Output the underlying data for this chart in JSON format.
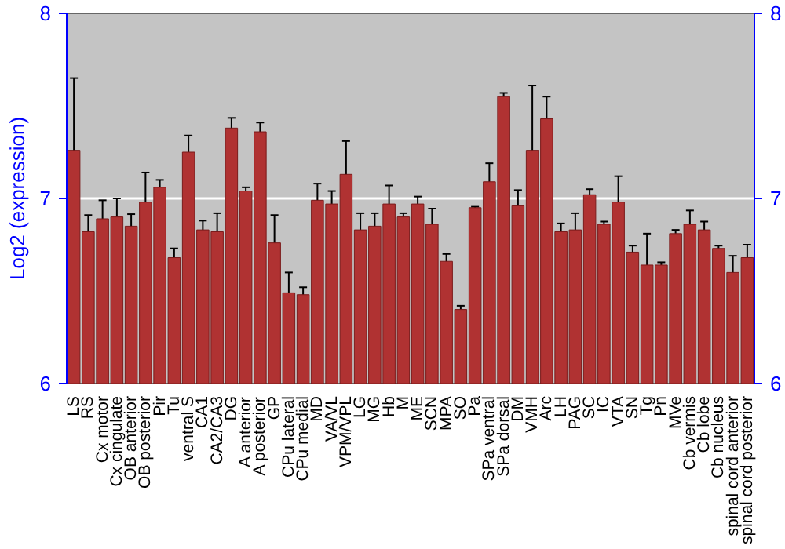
{
  "chart_data": {
    "type": "bar",
    "ylabel": "Log2 (expression)",
    "categories": [
      "LS",
      "RS",
      "Cx motor",
      "Cx cingulate",
      "OB anterior",
      "OB posterior",
      "Pir",
      "Tu",
      "ventral S",
      "CA1",
      "CA2/CA3",
      "DG",
      "A anterior",
      "A posterior",
      "GP",
      "CPu lateral",
      "CPu medial",
      "MD",
      "VA/VL",
      "VPM/VPL",
      "LG",
      "MG",
      "Hb",
      "M",
      "ME",
      "SCN",
      "MPA",
      "SO",
      "Pa",
      "SPa ventral",
      "SPa dorsal",
      "DM",
      "VMH",
      "Arc",
      "LH",
      "PAG",
      "SC",
      "IC",
      "VTA",
      "SN",
      "Tg",
      "Pn",
      "MVe",
      "Cb vermis",
      "Cb lobe",
      "Cb nucleus",
      "spinal cord anterior",
      "spinal cord posterior"
    ],
    "values": [
      7.26,
      6.82,
      6.89,
      6.9,
      6.85,
      6.98,
      7.06,
      6.68,
      7.25,
      6.83,
      6.82,
      7.38,
      7.04,
      7.36,
      6.76,
      6.49,
      6.48,
      6.99,
      6.97,
      7.13,
      6.83,
      6.85,
      6.97,
      6.9,
      6.97,
      6.86,
      6.66,
      6.4,
      6.95,
      7.09,
      7.55,
      6.96,
      7.26,
      7.43,
      6.82,
      6.83,
      7.02,
      6.86,
      6.98,
      6.71,
      6.64,
      6.64,
      6.81,
      6.86,
      6.83,
      6.73,
      6.6,
      6.68
    ],
    "errors": [
      0.39,
      0.09,
      0.1,
      0.1,
      0.065,
      0.16,
      0.04,
      0.05,
      0.09,
      0.05,
      0.1,
      0.055,
      0.02,
      0.05,
      0.15,
      0.11,
      0.04,
      0.09,
      0.07,
      0.18,
      0.09,
      0.07,
      0.1,
      0.02,
      0.04,
      0.085,
      0.04,
      0.02,
      0.005,
      0.1,
      0.02,
      0.085,
      0.35,
      0.12,
      0.045,
      0.09,
      0.03,
      0.015,
      0.14,
      0.035,
      0.17,
      0.015,
      0.02,
      0.075,
      0.045,
      0.015,
      0.09,
      0.07
    ],
    "color": "#b03232",
    "ylim": [
      6,
      8
    ],
    "yticks": [
      6,
      7,
      8
    ],
    "y2lim": [
      6,
      8
    ],
    "y2ticks": [
      6,
      7,
      8
    ],
    "grid": "y"
  }
}
